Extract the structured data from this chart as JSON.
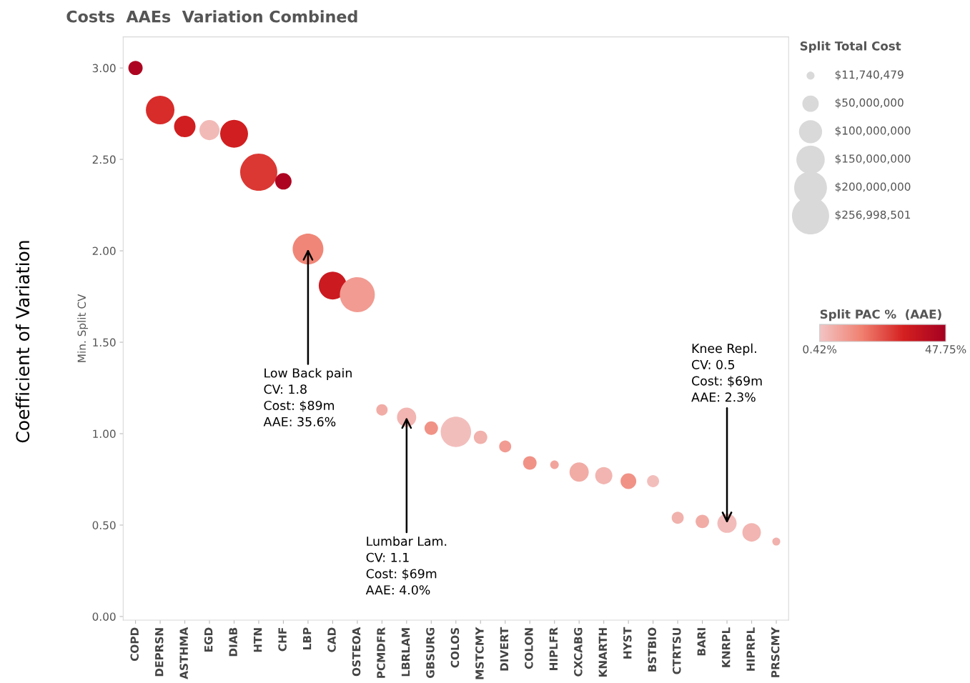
{
  "chart_data": {
    "type": "bubble",
    "title": "Costs  AAEs  Variation Combined",
    "ylabel": "Min. Split CV",
    "legend_title": "Split Total Cost",
    "clabel": "Split PAC %  (AAE)",
    "categories": [
      "COPD",
      "DEPRSN",
      "ASTHMA",
      "EGD",
      "DIAB",
      "HTN",
      "CHF",
      "LBP",
      "CAD",
      "OSTEOA",
      "PCMDFR",
      "LBRLAM",
      "GBSURG",
      "COLOS",
      "MSTCMY",
      "DIVERT",
      "COLON",
      "HIPLFR",
      "CXCABG",
      "KNARTH",
      "HYST",
      "BSTBIO",
      "CTRTSU",
      "BARI",
      "KNRPL",
      "HIPRPL",
      "PRSCMY"
    ],
    "values": [
      3.0,
      2.77,
      2.68,
      2.66,
      2.64,
      2.43,
      2.38,
      2.01,
      1.81,
      1.76,
      1.13,
      1.09,
      1.03,
      1.01,
      0.98,
      0.93,
      0.84,
      0.83,
      0.79,
      0.77,
      0.74,
      0.74,
      0.54,
      0.52,
      0.51,
      0.46,
      0.41
    ],
    "sizes": [
      38000000,
      152000000,
      86000000,
      75000000,
      145000000,
      256998501,
      50000000,
      176000000,
      145000000,
      228000000,
      24000000,
      69000000,
      34000000,
      172000000,
      34000000,
      27000000,
      34000000,
      13700000,
      69000000,
      55000000,
      46000000,
      27000000,
      27000000,
      34000000,
      69000000,
      64000000,
      11740479
    ],
    "cvalues": [
      45,
      30,
      33,
      3,
      33,
      28,
      45,
      15,
      35,
      10,
      6,
      4,
      12,
      2,
      5,
      10,
      12,
      8,
      6,
      4,
      12,
      2,
      5,
      6,
      2.3,
      4,
      5
    ],
    "clim": [
      0.42,
      47.75
    ],
    "cticks": [
      {
        "value": 0.42,
        "label": "0.42%"
      },
      {
        "value": 47.75,
        "label": "47.75%"
      }
    ],
    "size_legend": [
      {
        "value": 11740479,
        "label": "$11,740,479"
      },
      {
        "value": 50000000,
        "label": "$50,000,000"
      },
      {
        "value": 100000000,
        "label": "$100,000,000"
      },
      {
        "value": 150000000,
        "label": "$150,000,000"
      },
      {
        "value": 200000000,
        "label": "$200,000,000"
      },
      {
        "value": 256998501,
        "label": "$256,998,501"
      }
    ],
    "ylim": [
      -0.02,
      3.17
    ],
    "yticks": [
      {
        "value": 0,
        "label": "0.00"
      },
      {
        "value": 0.5,
        "label": "0.50"
      },
      {
        "value": 1,
        "label": "1.00"
      },
      {
        "value": 1.5,
        "label": "1.50"
      },
      {
        "value": 2,
        "label": "2.00"
      },
      {
        "value": 2.5,
        "label": "2.50"
      },
      {
        "value": 3,
        "label": "3.00"
      }
    ],
    "grid": false,
    "annotations": [
      "Coefficient of Variation",
      {
        "text": "Low Back pain\nCV: 1.8\nCost: $89m\nAAE: 35.6%",
        "x": "LBP",
        "y": 2.01
      },
      {
        "text": "Lumbar Lam.\nCV: 1.1\nCost: $69m\nAAE: 4.0%",
        "x": "LBRLAM",
        "y": 1.09
      },
      {
        "text": "Knee Repl.\nCV: 0.5\nCost: $69m\nAAE: 2.3%",
        "x": "KNRPL",
        "y": 0.51
      }
    ]
  }
}
